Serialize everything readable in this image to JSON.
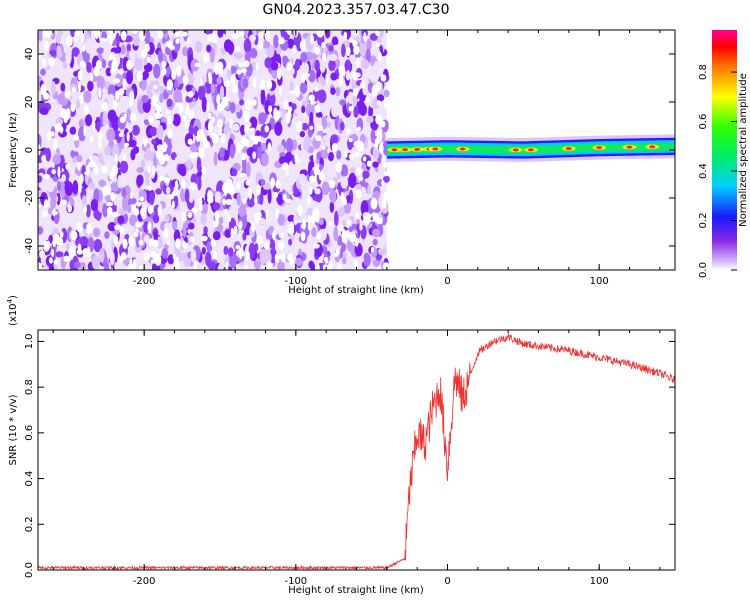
{
  "title": "GN04.2023.357.03.47.C30",
  "chart_data": [
    {
      "type": "heatmap",
      "xlabel": "Height of straight line (km)",
      "ylabel": "Frequency (Hz)",
      "xlim": [
        -270,
        150
      ],
      "ylim": [
        -50,
        50
      ],
      "x_ticks": [
        -200,
        -100,
        0,
        100
      ],
      "y_ticks": [
        -40,
        -20,
        0,
        20,
        40
      ],
      "noise_region_x": [
        -270,
        -40
      ],
      "signal_band": [
        {
          "x": -40,
          "y": 0
        },
        {
          "x": 0,
          "y": 0.5
        },
        {
          "x": 50,
          "y": 0
        },
        {
          "x": 100,
          "y": 1
        },
        {
          "x": 150,
          "y": 1.5
        }
      ],
      "colorbar": {
        "label": "Normalized spectral amplitude",
        "ticks": [
          0.0,
          0.2,
          0.4,
          0.6,
          0.8
        ],
        "range": [
          0,
          0.97
        ]
      }
    },
    {
      "type": "line",
      "xlabel": "Height of straight line (km)",
      "ylabel": "SNR (10 * v/v)",
      "scale_label": "(x10",
      "scale_exp": "4",
      "scale_close": ")",
      "xlim": [
        -270,
        150
      ],
      "ylim": [
        0,
        1.05
      ],
      "x_ticks": [
        -200,
        -100,
        0,
        100
      ],
      "y_ticks": [
        0.0,
        0.2,
        0.4,
        0.6,
        0.8,
        1.0
      ],
      "color": "#ee3333",
      "series": [
        {
          "x": [
            -270,
            -200,
            -100,
            -40,
            -28,
            -25,
            -20,
            -15,
            -10,
            -5,
            0,
            5,
            10,
            20,
            30,
            40,
            50,
            60,
            80,
            100,
            120,
            140,
            150
          ],
          "y": [
            0.01,
            0.01,
            0.01,
            0.01,
            0.05,
            0.35,
            0.6,
            0.55,
            0.7,
            0.8,
            0.45,
            0.85,
            0.75,
            0.95,
            1.0,
            1.02,
            0.99,
            0.98,
            0.96,
            0.93,
            0.9,
            0.86,
            0.83
          ]
        }
      ]
    }
  ]
}
